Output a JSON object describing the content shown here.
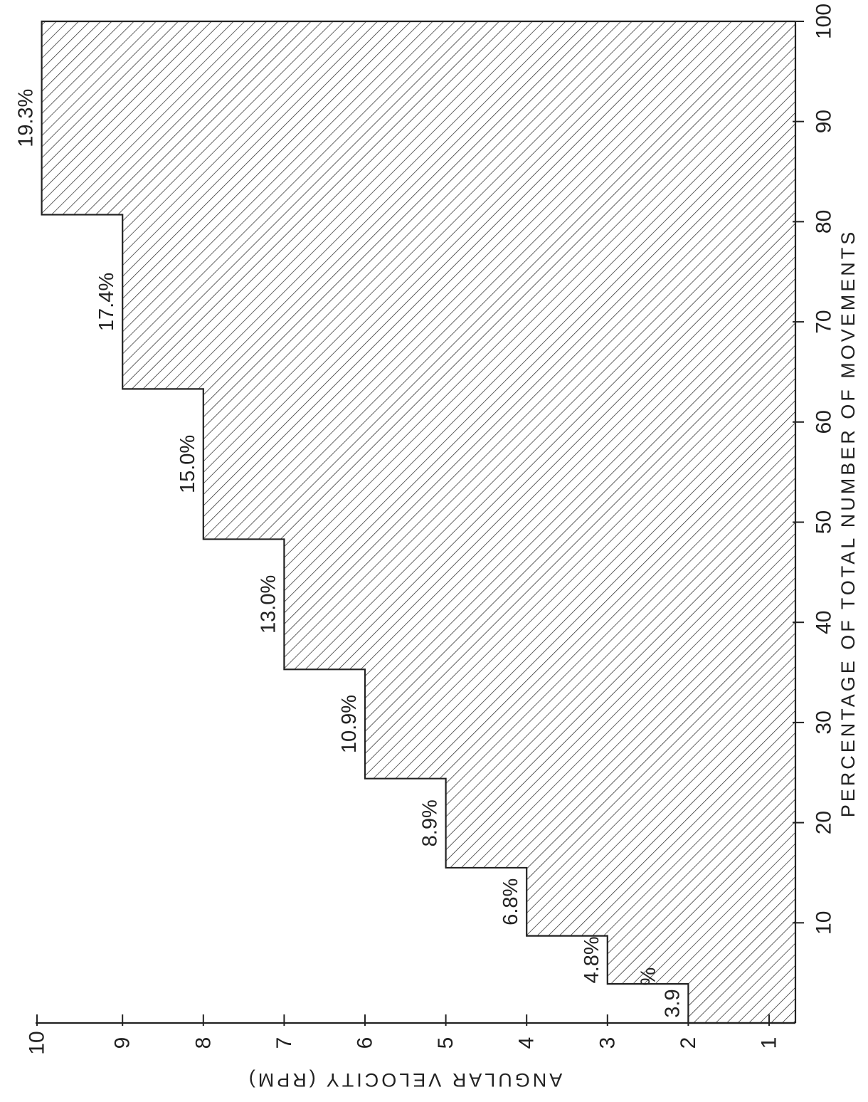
{
  "chart_data": {
    "type": "bar",
    "orientation": "stepped histogram, rotated 90 degrees clockwise",
    "xlabel": "PERCENTAGE OF TOTAL NUMBER OF MOVEMENTS",
    "ylabel": "ANGULAR VELOCITY (RPM)",
    "xlim": [
      0,
      100
    ],
    "ylim": [
      1,
      10
    ],
    "x_ticks": [
      "10",
      "20",
      "30",
      "40",
      "50",
      "60",
      "70",
      "80",
      "90",
      "100"
    ],
    "y_ticks": [
      "1",
      "2",
      "3",
      "4",
      "5",
      "6",
      "7",
      "8",
      "9",
      "10"
    ],
    "fill": "diagonal hatch",
    "grid": false,
    "bars": [
      {
        "velocity": 2,
        "percent": 3.9,
        "label": "3.9",
        "label_suffix": "%"
      },
      {
        "velocity": 3,
        "percent": 4.8,
        "label": "4.8%"
      },
      {
        "velocity": 4,
        "percent": 6.8,
        "label": "6.8%"
      },
      {
        "velocity": 5,
        "percent": 8.9,
        "label": "8.9%"
      },
      {
        "velocity": 6,
        "percent": 10.9,
        "label": "10.9%"
      },
      {
        "velocity": 7,
        "percent": 13.0,
        "label": "13.0%"
      },
      {
        "velocity": 8,
        "percent": 15.0,
        "label": "15.0%"
      },
      {
        "velocity": 9,
        "percent": 17.4,
        "label": "17.4%"
      },
      {
        "velocity": 10,
        "percent": 19.3,
        "label": "19.3%"
      }
    ]
  }
}
